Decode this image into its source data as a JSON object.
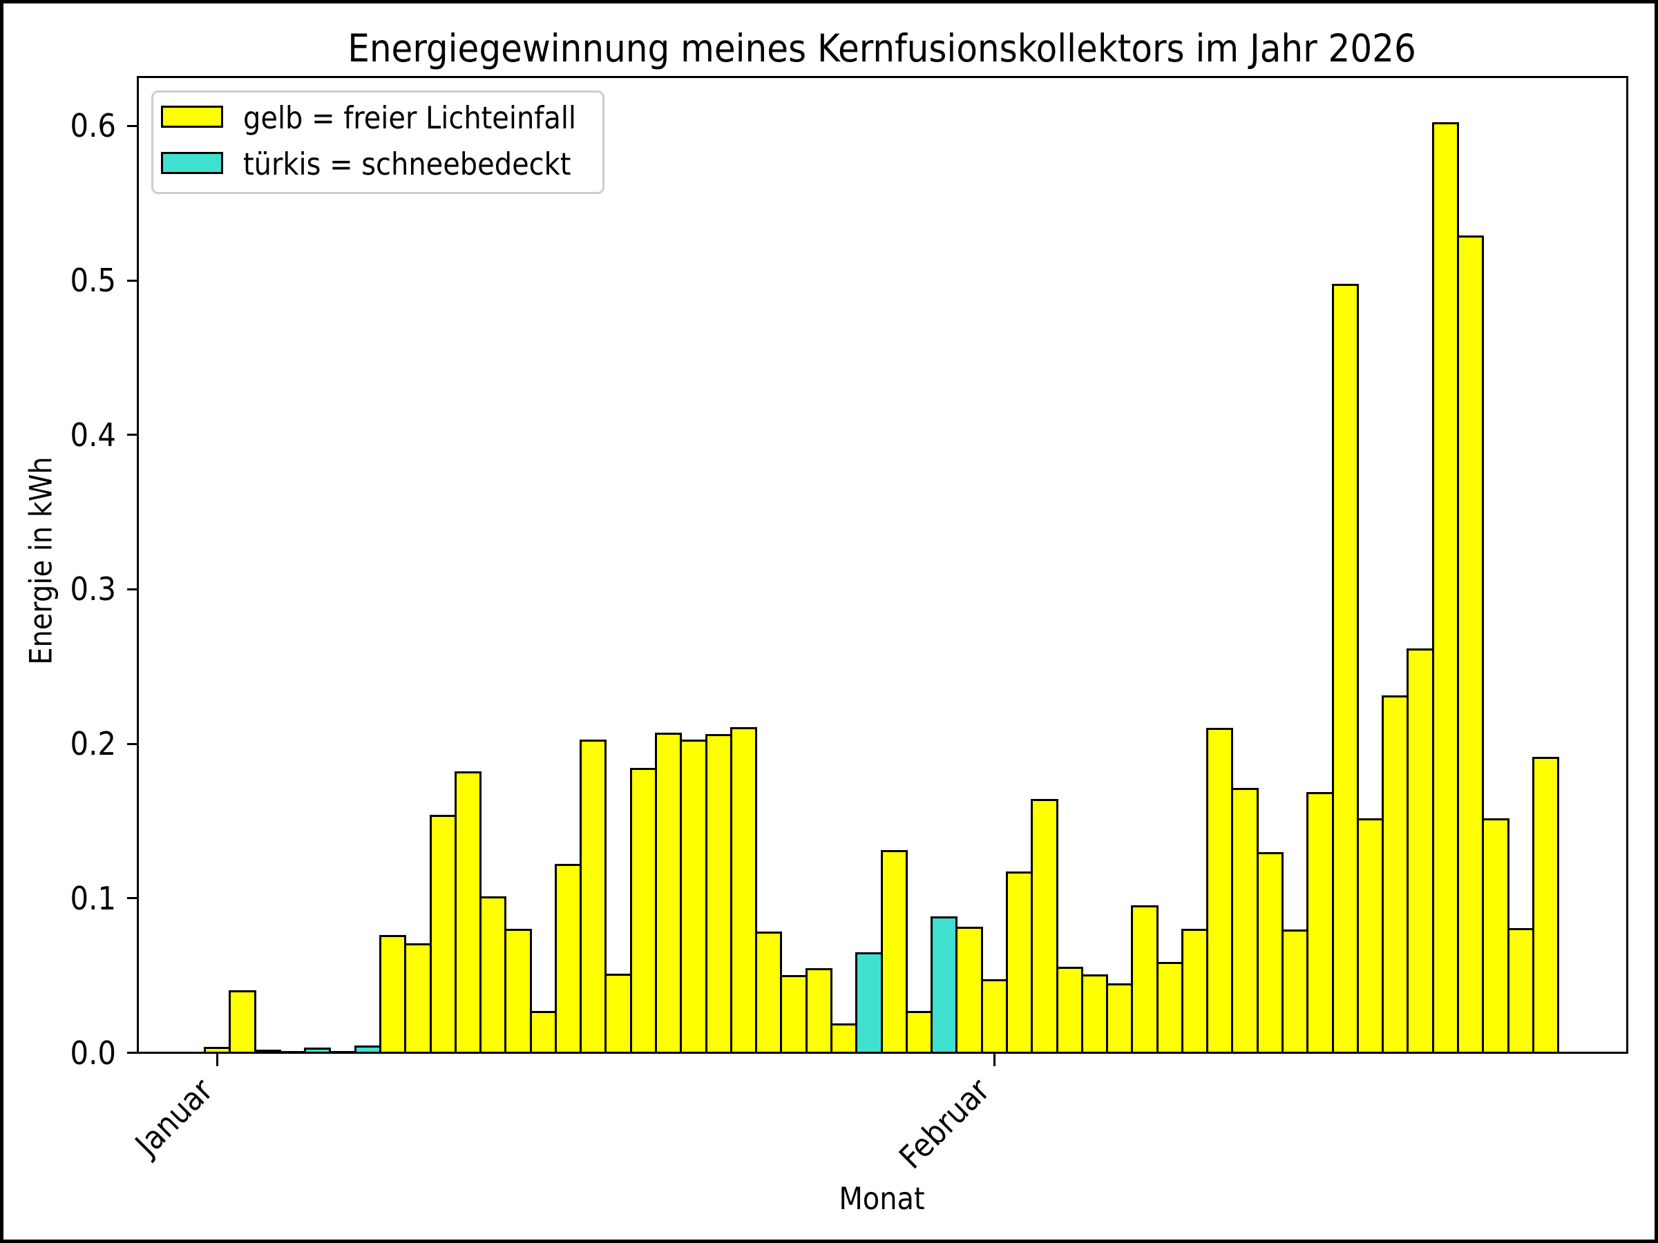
{
  "figure": {
    "title": "Energiegewinnung meines Kernfusionskollektors im Jahr 2026",
    "xlabel": "Monat",
    "ylabel": "Energie in kWh"
  },
  "legend": {
    "items": [
      {
        "label": "gelb = freier Lichteinfall",
        "color": "#ffff00"
      },
      {
        "label": "türkis = schneebedeckt",
        "color": "#40e0d0"
      }
    ]
  },
  "chart_data": {
    "type": "bar",
    "title": "Energiegewinnung meines Kernfusionskollektors im Jahr 2026",
    "xlabel": "Monat",
    "ylabel": "Energie in kWh",
    "ylim": [
      0,
      0.633
    ],
    "yticks": [
      0.0,
      0.1,
      0.2,
      0.3,
      0.4,
      0.5,
      0.6
    ],
    "ytick_labels": [
      "0.0",
      "0.1",
      "0.2",
      "0.3",
      "0.4",
      "0.5",
      "0.6"
    ],
    "xtick_labels": [
      "Januar",
      "Februar"
    ],
    "xtick_bar_indices": [
      0,
      31
    ],
    "grid": false,
    "legend_position": "upper left",
    "bar_color_free": "#ffff00",
    "bar_color_snow": "#40e0d0",
    "bar_edge_color": "#000000",
    "values": [
      0.003,
      0.0398,
      0.0012,
      0.0003,
      0.0028,
      0.0003,
      0.0039,
      0.0755,
      0.0703,
      0.1532,
      0.1816,
      0.1006,
      0.0796,
      0.0263,
      0.1218,
      0.2019,
      0.0503,
      0.1837,
      0.2065,
      0.2019,
      0.2058,
      0.2103,
      0.0777,
      0.0498,
      0.0542,
      0.0182,
      0.0643,
      0.1307,
      0.0265,
      0.0876,
      0.081,
      0.0471,
      0.1169,
      0.1637,
      0.0552,
      0.0502,
      0.0443,
      0.095,
      0.058,
      0.0797,
      0.2096,
      0.1707,
      0.1291,
      0.0793,
      0.168,
      0.4971,
      0.1509,
      0.2305,
      0.2613,
      0.6016,
      0.5286,
      0.1509,
      0.08,
      0.1911
    ],
    "snow_covered_indices": [
      4,
      6,
      26,
      29
    ]
  }
}
